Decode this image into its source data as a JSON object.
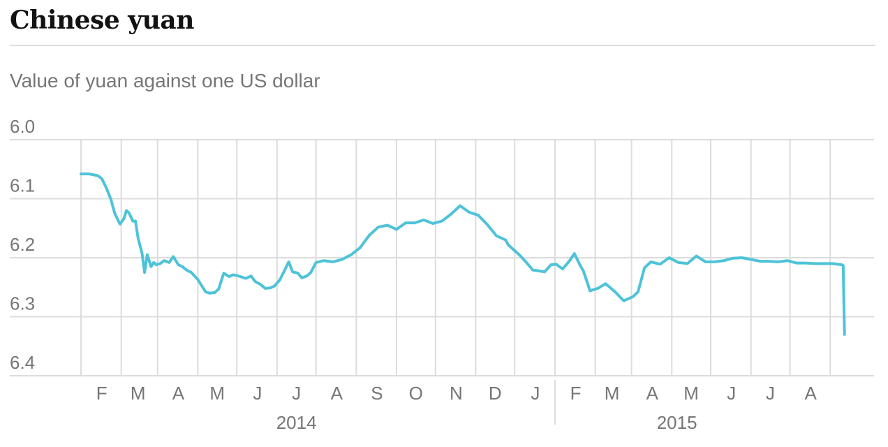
{
  "header": {
    "title": "Chinese yuan",
    "subtitle": "Value of yuan against one US dollar"
  },
  "chart_data": {
    "type": "line",
    "title": "Chinese yuan",
    "subtitle": "Value of yuan against one US dollar",
    "xlabel": "",
    "ylabel": "",
    "ylim": [
      6.0,
      6.4
    ],
    "y_reversed": true,
    "y_ticks": [
      "6.0",
      "6.1",
      "6.2",
      "6.3",
      "6.4"
    ],
    "y_tick_values": [
      6.0,
      6.1,
      6.2,
      6.3,
      6.4
    ],
    "x_ticks": [
      "F",
      "M",
      "A",
      "M",
      "J",
      "J",
      "A",
      "S",
      "O",
      "N",
      "D",
      "J",
      "F",
      "M",
      "A",
      "M",
      "J",
      "J",
      "A"
    ],
    "x_tick_dates": [
      "2014-02-01",
      "2014-03-01",
      "2014-04-01",
      "2014-05-01",
      "2014-06-01",
      "2014-07-01",
      "2014-08-01",
      "2014-09-01",
      "2014-10-01",
      "2014-11-01",
      "2014-12-01",
      "2015-01-01",
      "2015-02-01",
      "2015-03-01",
      "2015-04-01",
      "2015-05-01",
      "2015-06-01",
      "2015-07-01",
      "2015-08-01"
    ],
    "xlim": [
      "2014-01-01",
      "2015-08-31"
    ],
    "year_labels": [
      {
        "label": "2014",
        "date": "2014-07-01"
      },
      {
        "label": "2015",
        "date": "2015-04-20"
      }
    ],
    "year_divider_date": "2015-01-01",
    "grid": true,
    "line_color": "#4ec3d8",
    "grid_color": "#dcdcdc",
    "series": [
      {
        "x": [
          "2014-01-01",
          "2014-01-07",
          "2014-01-14",
          "2014-01-17",
          "2014-01-20",
          "2014-01-22",
          "2014-01-24",
          "2014-01-27",
          "2014-01-31",
          "2014-02-03",
          "2014-02-05",
          "2014-02-07",
          "2014-02-10",
          "2014-02-12",
          "2014-02-14",
          "2014-02-17",
          "2014-02-19",
          "2014-02-21",
          "2014-02-24",
          "2014-02-26",
          "2014-02-28",
          "2014-03-03",
          "2014-03-06",
          "2014-03-10",
          "2014-03-13",
          "2014-03-17",
          "2014-03-20",
          "2014-03-24",
          "2014-03-27",
          "2014-04-01",
          "2014-04-07",
          "2014-04-10",
          "2014-04-14",
          "2014-04-17",
          "2014-04-21",
          "2014-04-25",
          "2014-04-28",
          "2014-05-01",
          "2014-05-08",
          "2014-05-12",
          "2014-05-15",
          "2014-05-19",
          "2014-05-23",
          "2014-05-27",
          "2014-05-30",
          "2014-06-03",
          "2014-06-06",
          "2014-06-10",
          "2014-06-13",
          "2014-06-17",
          "2014-06-20",
          "2014-06-24",
          "2014-06-27",
          "2014-07-01",
          "2014-07-07",
          "2014-07-14",
          "2014-07-21",
          "2014-07-28",
          "2014-08-04",
          "2014-08-11",
          "2014-08-18",
          "2014-08-25",
          "2014-09-01",
          "2014-09-08",
          "2014-09-15",
          "2014-09-22",
          "2014-09-29",
          "2014-10-06",
          "2014-10-13",
          "2014-10-20",
          "2014-10-27",
          "2014-11-03",
          "2014-11-10",
          "2014-11-17",
          "2014-11-24",
          "2014-11-26",
          "2014-12-01",
          "2014-12-05",
          "2014-12-10",
          "2014-12-15",
          "2014-12-19",
          "2014-12-24",
          "2014-12-29",
          "2015-01-02",
          "2015-01-07",
          "2015-01-12",
          "2015-01-16",
          "2015-01-20",
          "2015-01-23",
          "2015-01-28",
          "2015-02-03",
          "2015-02-09",
          "2015-02-16",
          "2015-02-23",
          "2015-03-02",
          "2015-03-06",
          "2015-03-11",
          "2015-03-16",
          "2015-03-23",
          "2015-03-30",
          "2015-04-06",
          "2015-04-13",
          "2015-04-20",
          "2015-04-27",
          "2015-05-04",
          "2015-05-11",
          "2015-05-18",
          "2015-05-25",
          "2015-06-01",
          "2015-06-08",
          "2015-06-15",
          "2015-06-22",
          "2015-06-29",
          "2015-07-06",
          "2015-07-13",
          "2015-07-20",
          "2015-07-27",
          "2015-08-03",
          "2015-08-10",
          "2015-08-11",
          "2015-08-12"
        ],
        "y": [
          6.058,
          6.058,
          6.061,
          6.066,
          6.079,
          6.09,
          6.101,
          6.125,
          6.143,
          6.134,
          6.12,
          6.124,
          6.138,
          6.138,
          6.167,
          6.192,
          6.225,
          6.195,
          6.215,
          6.208,
          6.212,
          6.21,
          6.205,
          6.208,
          6.198,
          6.212,
          6.215,
          6.222,
          6.225,
          6.237,
          6.258,
          6.26,
          6.259,
          6.253,
          6.226,
          6.232,
          6.229,
          6.23,
          6.235,
          6.231,
          6.24,
          6.245,
          6.252,
          6.251,
          6.248,
          6.238,
          6.225,
          6.207,
          6.224,
          6.226,
          6.234,
          6.231,
          6.225,
          6.208,
          6.205,
          6.207,
          6.203,
          6.195,
          6.183,
          6.162,
          6.148,
          6.145,
          6.152,
          6.141,
          6.141,
          6.136,
          6.142,
          6.138,
          6.126,
          6.112,
          6.123,
          6.128,
          6.144,
          6.163,
          6.17,
          6.178,
          6.188,
          6.196,
          6.208,
          6.221,
          6.222,
          6.224,
          6.212,
          6.211,
          6.219,
          6.206,
          6.193,
          6.211,
          6.223,
          6.256,
          6.252,
          6.244,
          6.257,
          6.273,
          6.266,
          6.258,
          6.217,
          6.207,
          6.211,
          6.2,
          6.208,
          6.21,
          6.197,
          6.207,
          6.207,
          6.205,
          6.201,
          6.2,
          6.203,
          6.206,
          6.206,
          6.207,
          6.205,
          6.209,
          6.209,
          6.21,
          6.21,
          6.21,
          6.212,
          6.213,
          6.33
        ]
      }
    ]
  }
}
